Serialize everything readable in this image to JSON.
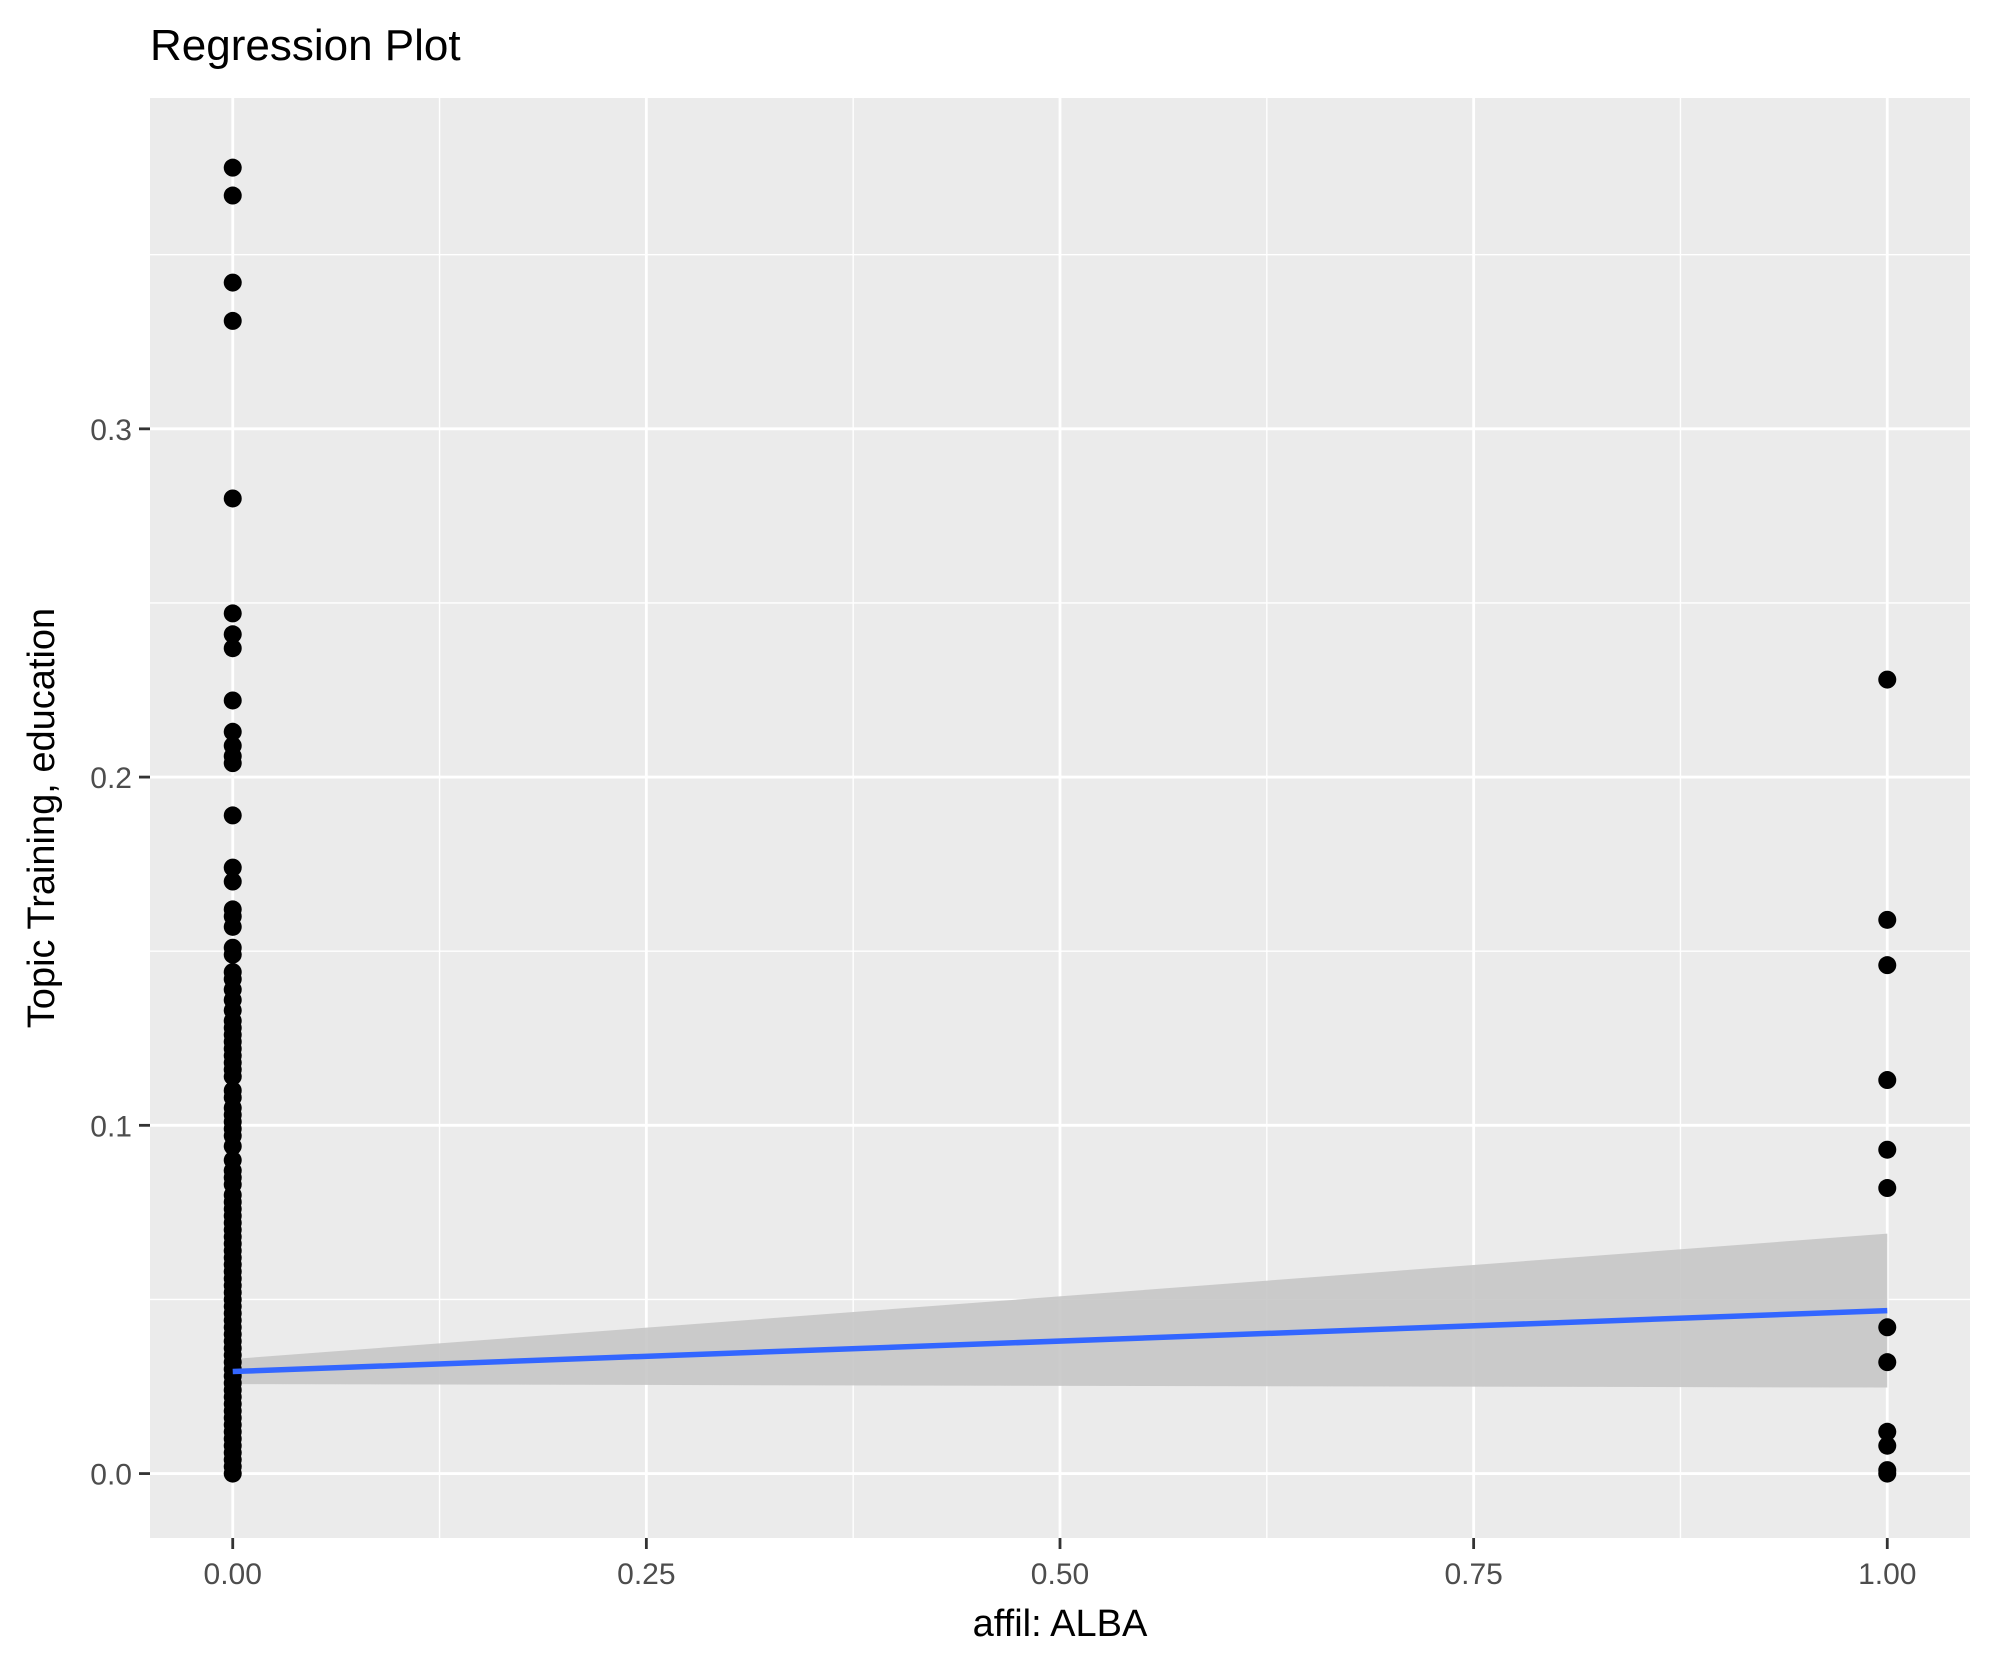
{
  "chart_data": {
    "type": "scatter",
    "title": "Regression Plot",
    "xlabel": "affil: ALBA",
    "ylabel": "Topic Training, education",
    "xlim": [
      -0.05,
      1.05
    ],
    "ylim": [
      -0.0185,
      0.395
    ],
    "x_ticks": [
      0.0,
      0.25,
      0.5,
      0.75,
      1.0
    ],
    "x_tick_labels": [
      "0.00",
      "0.25",
      "0.50",
      "0.75",
      "1.00"
    ],
    "y_ticks": [
      0.0,
      0.1,
      0.2,
      0.3
    ],
    "y_tick_labels": [
      "0.0",
      "0.1",
      "0.2",
      "0.3"
    ],
    "grid": true,
    "colors": {
      "panel": "#ebebeb",
      "grid": "#ffffff",
      "points": "#000000",
      "fit_line": "#3366ff",
      "ribbon": "#c7c7c7"
    },
    "series": [
      {
        "x": 0,
        "y": [
          0.375,
          0.367,
          0.342,
          0.331,
          0.28,
          0.247,
          0.241,
          0.237,
          0.222,
          0.213,
          0.209,
          0.206,
          0.204,
          0.189,
          0.174,
          0.17,
          0.162,
          0.16,
          0.157,
          0.151,
          0.149,
          0.144,
          0.142,
          0.139,
          0.136,
          0.133,
          0.13,
          0.128,
          0.126,
          0.124,
          0.122,
          0.12,
          0.118,
          0.116,
          0.114,
          0.11,
          0.108,
          0.105,
          0.103,
          0.101,
          0.099,
          0.097,
          0.094,
          0.09,
          0.087,
          0.085,
          0.083,
          0.08,
          0.078,
          0.076,
          0.074,
          0.072,
          0.07,
          0.068,
          0.066,
          0.064,
          0.062,
          0.06,
          0.058,
          0.056,
          0.054,
          0.052,
          0.05,
          0.048,
          0.046,
          0.044,
          0.042,
          0.04,
          0.038,
          0.036,
          0.034,
          0.032,
          0.03,
          0.028,
          0.026,
          0.024,
          0.022,
          0.02,
          0.018,
          0.016,
          0.014,
          0.012,
          0.01,
          0.008,
          0.006,
          0.004,
          0.002,
          0.0
        ]
      },
      {
        "x": 1,
        "y": [
          0.228,
          0.159,
          0.146,
          0.113,
          0.093,
          0.082,
          0.042,
          0.032,
          0.012,
          0.008,
          0.001,
          0.0
        ]
      }
    ],
    "fit": {
      "x": [
        0,
        1
      ],
      "y": [
        0.0293,
        0.0468
      ],
      "ci_lower": [
        0.0257,
        0.0247
      ],
      "ci_upper": [
        0.0329,
        0.0689
      ]
    }
  }
}
